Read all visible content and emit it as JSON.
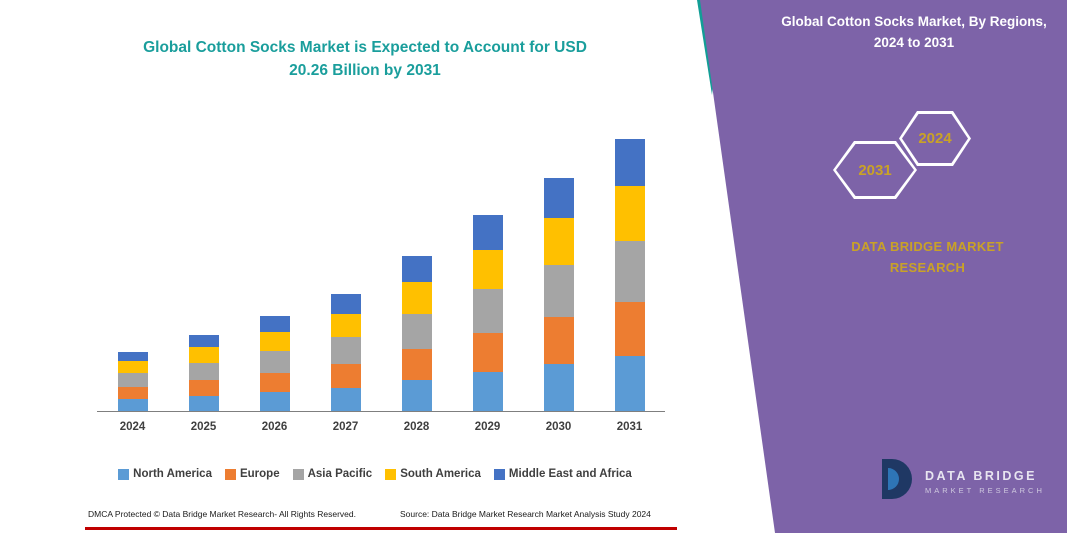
{
  "page": {
    "title_line1": "Global Cotton Socks Market is Expected to Account for USD",
    "title_line2": "20.26 Billion by 2031"
  },
  "right_panel": {
    "heading": "Global Cotton Socks Market, By Regions, 2024 to 2031",
    "hex_back_label": "2031",
    "hex_front_label": "2024",
    "brand_line1": "DATA BRIDGE MARKET",
    "brand_line2": "RESEARCH",
    "colors": {
      "panel": "#7D63A8",
      "accent_teal": "#129E96",
      "gold": "#C9A227"
    }
  },
  "logo": {
    "name_top": "DATA BRIDGE",
    "name_bottom": "MARKET RESEARCH"
  },
  "footer": {
    "left": "DMCA Protected © Data Bridge Market Research-  All Rights Reserved.",
    "source": "Source: Data Bridge Market Research  Market Analysis Study 2024"
  },
  "chart_data": {
    "type": "bar",
    "stacked": true,
    "title": "Global Cotton Socks Market is Expected to Account for USD 20.26 Billion by 2031",
    "categories": [
      "2024",
      "2025",
      "2026",
      "2027",
      "2028",
      "2029",
      "2030",
      "2031"
    ],
    "series": [
      {
        "name": "North America",
        "color": "#5B9BD5",
        "values": [
          0.9,
          1.15,
          1.45,
          1.75,
          2.3,
          2.9,
          3.5,
          4.1
        ]
      },
      {
        "name": "Europe",
        "color": "#ED7D31",
        "values": [
          0.9,
          1.15,
          1.4,
          1.75,
          2.3,
          2.9,
          3.5,
          4.0
        ]
      },
      {
        "name": "Asia Pacific",
        "color": "#A5A5A5",
        "values": [
          1.0,
          1.3,
          1.6,
          2.0,
          2.6,
          3.3,
          3.9,
          4.6
        ]
      },
      {
        "name": "South America",
        "color": "#FFC000",
        "values": [
          0.9,
          1.15,
          1.45,
          1.75,
          2.4,
          2.9,
          3.5,
          4.1
        ]
      },
      {
        "name": "Middle East and Africa",
        "color": "#4472C4",
        "values": [
          0.7,
          0.95,
          1.2,
          1.45,
          2.0,
          2.6,
          3.0,
          3.46
        ]
      }
    ],
    "xlabel": "",
    "ylabel": "",
    "ylim": [
      0,
      22
    ],
    "grid": false,
    "legend_position": "bottom",
    "units": "USD Billion"
  }
}
